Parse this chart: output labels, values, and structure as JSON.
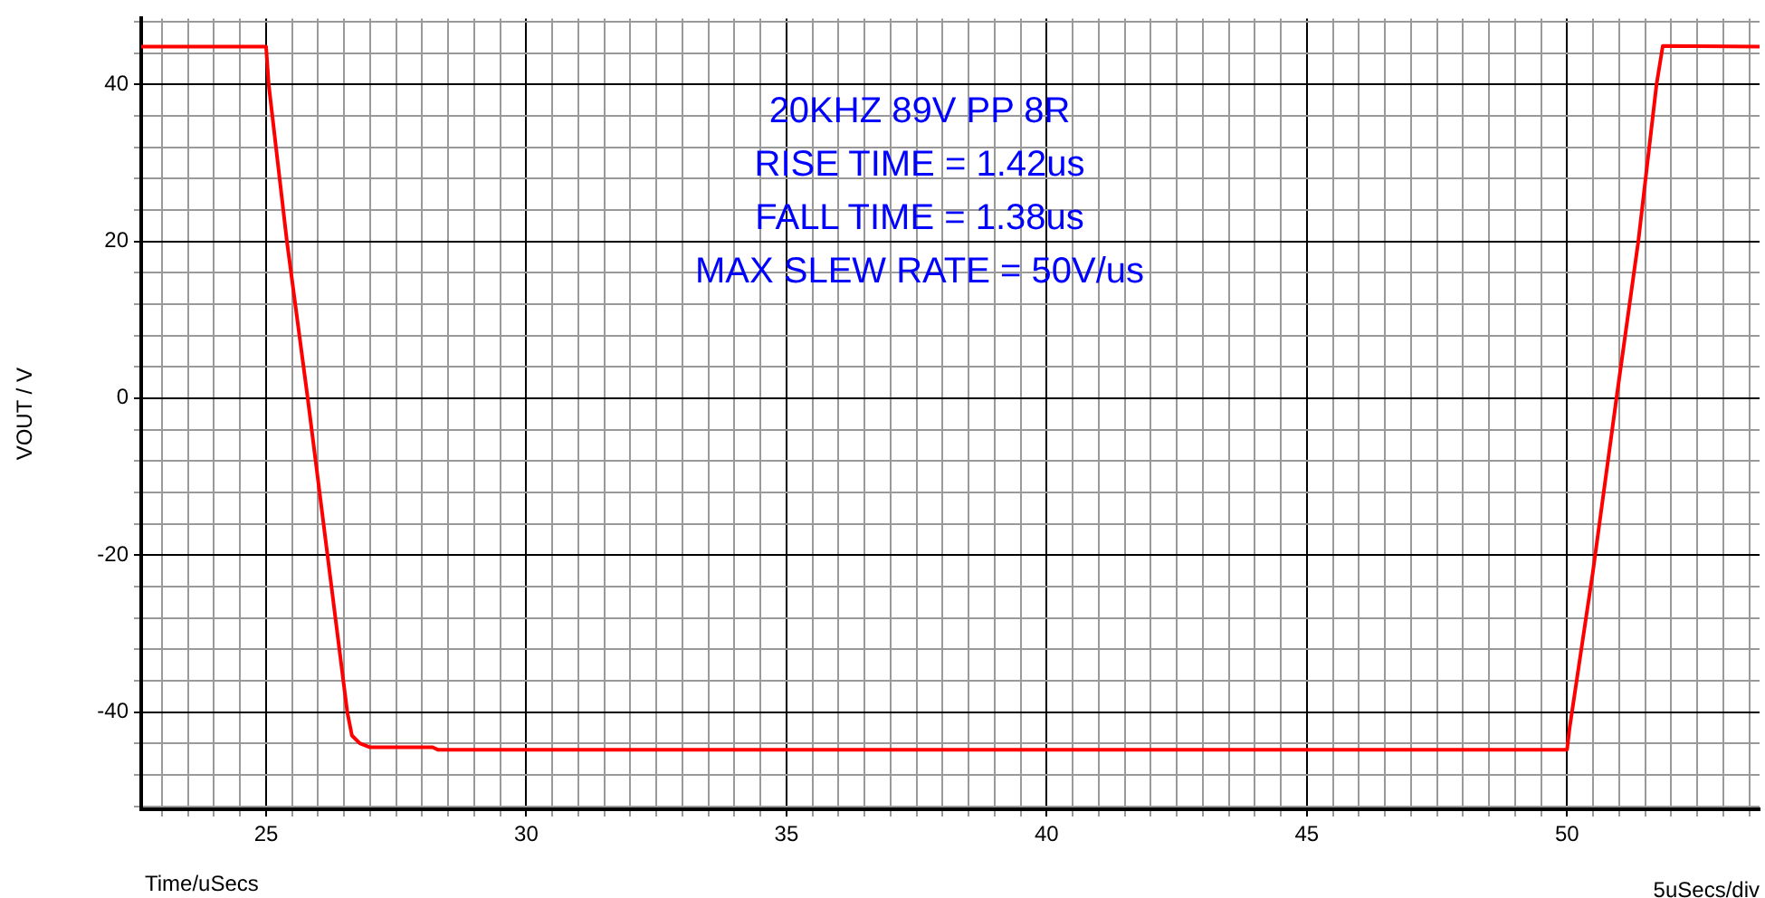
{
  "chart_data": {
    "type": "line",
    "xlabel": "Time/uSecs",
    "ylabel": "VOUT / V",
    "annotations": [
      "20KHZ 89V PP 8R",
      "RISE TIME = 1.42us",
      "FALL TIME = 1.38us",
      "MAX SLEW RATE = 50V/us",
      "5uSecs/div"
    ],
    "x": [
      22.6,
      25.0,
      25.05,
      25.4,
      25.8,
      26.18,
      26.56,
      26.65,
      26.8,
      27.0,
      28.2,
      28.3,
      50.0,
      50.05,
      50.5,
      50.95,
      51.37,
      51.72,
      51.84,
      53.7
    ],
    "series": [
      {
        "color": "#ff0000",
        "values": [
          44.8,
          44.8,
          40,
          20,
          0,
          -20,
          -40,
          -43,
          -44,
          -44.5,
          -44.5,
          -44.8,
          -44.8,
          -42,
          -22,
          0,
          20,
          40,
          44.9,
          44.8
        ]
      }
    ],
    "xlim": [
      22.6,
      53.7
    ],
    "xticks": [
      {
        "value": 23,
        "label": null
      },
      {
        "value": 23.5,
        "label": null
      },
      {
        "value": 24,
        "label": null
      },
      {
        "value": 24.5,
        "label": null
      },
      25,
      {
        "value": 25.5,
        "label": null
      },
      {
        "value": 26,
        "label": null
      },
      {
        "value": 26.5,
        "label": null
      },
      {
        "value": 27,
        "label": null
      },
      {
        "value": 27.5,
        "label": null
      },
      {
        "value": 28,
        "label": null
      },
      {
        "value": 28.5,
        "label": null
      },
      {
        "value": 29,
        "label": null
      },
      {
        "value": 29.5,
        "label": null
      },
      30,
      {
        "value": 30.5,
        "label": null
      },
      {
        "value": 31,
        "label": null
      },
      {
        "value": 31.5,
        "label": null
      },
      {
        "value": 32,
        "label": null
      },
      {
        "value": 32.5,
        "label": null
      },
      {
        "value": 33,
        "label": null
      },
      {
        "value": 33.5,
        "label": null
      },
      {
        "value": 34,
        "label": null
      },
      {
        "value": 34.5,
        "label": null
      },
      35,
      {
        "value": 35.5,
        "label": null
      },
      {
        "value": 36,
        "label": null
      },
      {
        "value": 36.5,
        "label": null
      },
      {
        "value": 37,
        "label": null
      },
      {
        "value": 37.5,
        "label": null
      },
      {
        "value": 38,
        "label": null
      },
      {
        "value": 38.5,
        "label": null
      },
      {
        "value": 39,
        "label": null
      },
      {
        "value": 39.5,
        "label": null
      },
      40,
      {
        "value": 40.5,
        "label": null
      },
      {
        "value": 41,
        "label": null
      },
      {
        "value": 41.5,
        "label": null
      },
      {
        "value": 42,
        "label": null
      },
      {
        "value": 42.5,
        "label": null
      },
      {
        "value": 43,
        "label": null
      },
      {
        "value": 43.5,
        "label": null
      },
      {
        "value": 44,
        "label": null
      },
      {
        "value": 44.5,
        "label": null
      },
      45,
      {
        "value": 45.5,
        "label": null
      },
      {
        "value": 46,
        "label": null
      },
      {
        "value": 46.5,
        "label": null
      },
      {
        "value": 47,
        "label": null
      },
      {
        "value": 47.5,
        "label": null
      },
      {
        "value": 48,
        "label": null
      },
      {
        "value": 48.5,
        "label": null
      },
      {
        "value": 49,
        "label": null
      },
      {
        "value": 49.5,
        "label": null
      },
      50,
      {
        "value": 50.5,
        "label": null
      },
      {
        "value": 51,
        "label": null
      },
      {
        "value": 51.5,
        "label": null
      },
      {
        "value": 52,
        "label": null
      },
      {
        "value": 52.5,
        "label": null
      },
      {
        "value": 53,
        "label": null
      },
      {
        "value": 53.5,
        "label": null
      }
    ],
    "ylim": [
      -52.4,
      48.4
    ],
    "yticks": [
      {
        "value": -52,
        "label": null
      },
      {
        "value": -48,
        "label": null
      },
      {
        "value": -44,
        "label": null
      },
      -40,
      {
        "value": -36,
        "label": null
      },
      {
        "value": -32,
        "label": null
      },
      {
        "value": -28,
        "label": null
      },
      {
        "value": -24,
        "label": null
      },
      -20,
      {
        "value": -16,
        "label": null
      },
      {
        "value": -12,
        "label": null
      },
      {
        "value": -8,
        "label": null
      },
      {
        "value": -4,
        "label": null
      },
      0,
      {
        "value": 4,
        "label": null
      },
      {
        "value": 8,
        "label": null
      },
      {
        "value": 12,
        "label": null
      },
      {
        "value": 16,
        "label": null
      },
      20,
      {
        "value": 24,
        "label": null
      },
      {
        "value": 28,
        "label": null
      },
      {
        "value": 32,
        "label": null
      },
      {
        "value": 36,
        "label": null
      },
      40,
      {
        "value": 44,
        "label": null
      },
      {
        "value": 48,
        "label": null
      }
    ],
    "grid": true,
    "marker": "none",
    "line_style": "solid",
    "legend": false
  }
}
